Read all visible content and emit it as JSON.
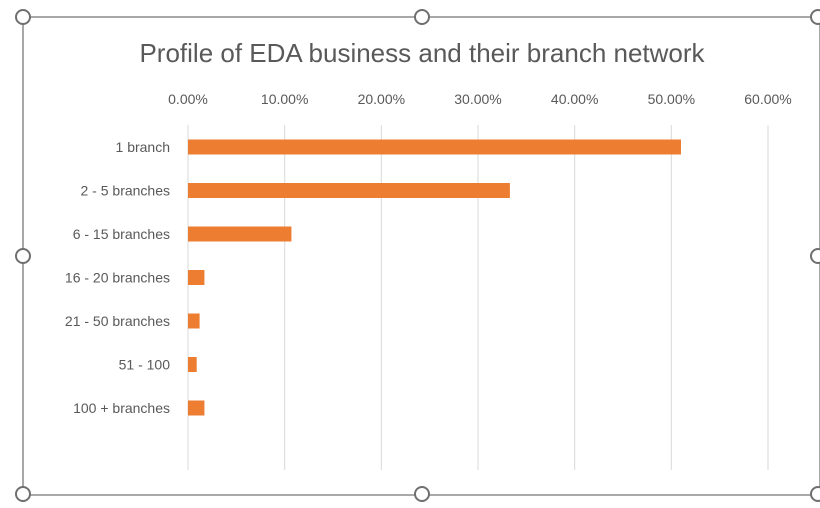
{
  "chart_data": {
    "type": "bar",
    "orientation": "horizontal",
    "title": "Profile of EDA business and their branch network",
    "categories": [
      "1 branch",
      "2 - 5 branches",
      "6 - 15 branches",
      "16 - 20 branches",
      "21 - 50 branches",
      "51 - 100",
      "100 + branches"
    ],
    "values": [
      0.51,
      0.333,
      0.107,
      0.017,
      0.012,
      0.009,
      0.017
    ],
    "xlim": [
      0,
      0.6
    ],
    "xticks": [
      0,
      0.1,
      0.2,
      0.3,
      0.4,
      0.5,
      0.6
    ],
    "xtick_labels": [
      "0.00%",
      "10.00%",
      "20.00%",
      "30.00%",
      "40.00%",
      "50.00%",
      "60.00%"
    ],
    "x_axis_position": "top",
    "grid": true,
    "legend": "none",
    "bar_color": "#ed7d31",
    "grid_color": "#d9d9d9",
    "text_color": "#595959",
    "selection_handle_color": "#8c8c8c"
  }
}
